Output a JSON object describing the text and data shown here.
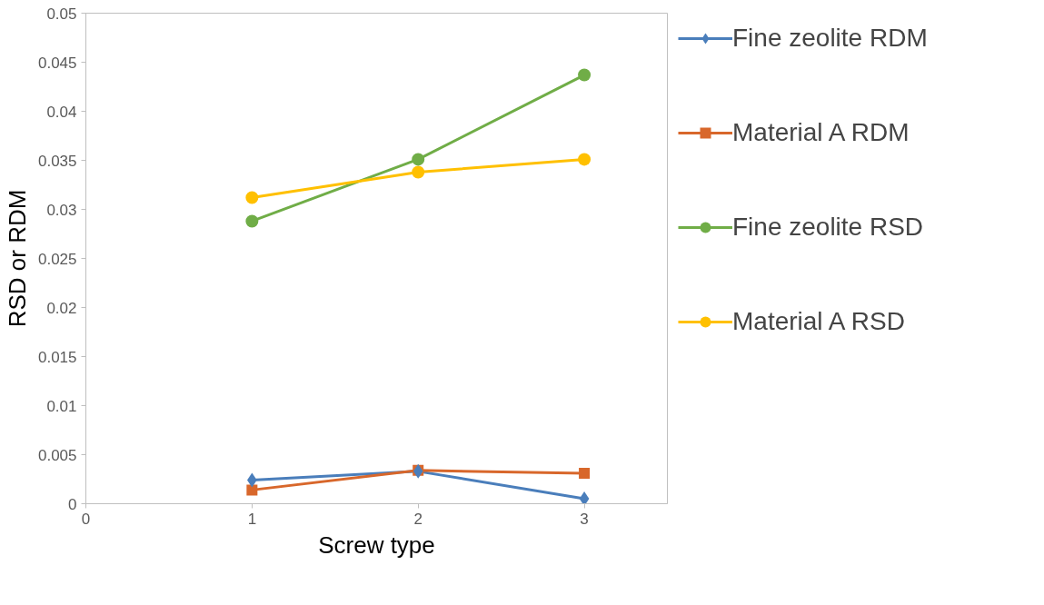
{
  "chart_data": {
    "type": "line",
    "xlabel": "Screw type",
    "ylabel": "RSD or RDM",
    "x": [
      1,
      2,
      3
    ],
    "series": [
      {
        "name": "Fine zeolite RDM",
        "color": "#4a7ebb",
        "marker": "diamond",
        "values": [
          0.0024,
          0.0033,
          0.0005
        ]
      },
      {
        "name": "Material A RDM",
        "color": "#d8672b",
        "marker": "square",
        "values": [
          0.0014,
          0.0034,
          0.0031
        ]
      },
      {
        "name": "Fine zeolite RSD",
        "color": "#70ad47",
        "marker": "circle",
        "values": [
          0.0288,
          0.0351,
          0.0437
        ]
      },
      {
        "name": "Material A RSD",
        "color": "#ffc000",
        "marker": "circle",
        "values": [
          0.0312,
          0.0338,
          0.0351
        ]
      }
    ],
    "xlim": [
      0,
      3.5
    ],
    "xticks": [
      0,
      1,
      2,
      3
    ],
    "ylim": [
      0,
      0.05
    ],
    "yticks": [
      0,
      0.005,
      0.01,
      0.015,
      0.02,
      0.025,
      0.03,
      0.035,
      0.04,
      0.045,
      0.05
    ],
    "grid": false,
    "legend": "right"
  }
}
